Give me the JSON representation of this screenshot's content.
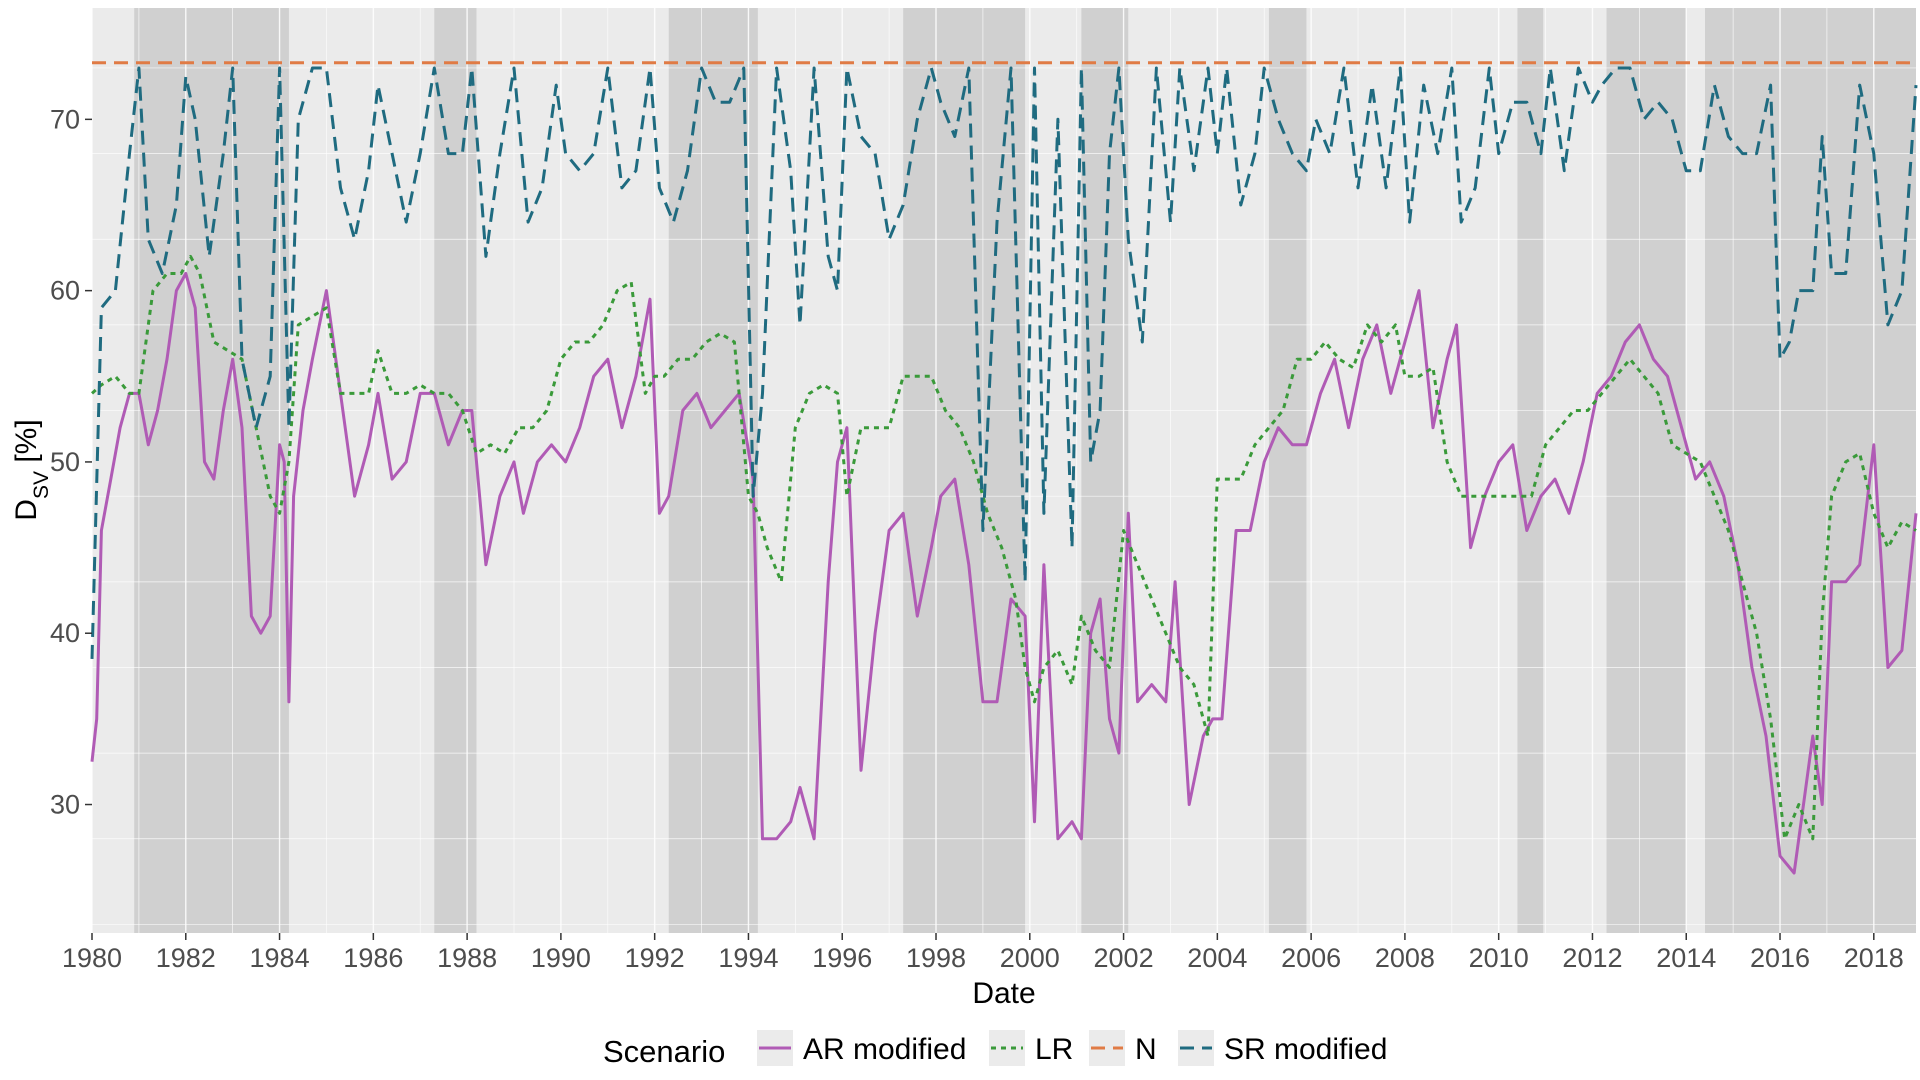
{
  "chart_data": {
    "type": "line",
    "xlabel": "Date",
    "ylabel": "D",
    "ylabel_sub": "SV",
    "ylabel_unit": " [%]",
    "xlim": [
      1980.0,
      2018.9
    ],
    "ylim": [
      22.5,
      76.5
    ],
    "x_ticks": [
      1980,
      1982,
      1984,
      1986,
      1988,
      1990,
      1992,
      1994,
      1996,
      1998,
      2000,
      2002,
      2004,
      2006,
      2008,
      2010,
      2012,
      2014,
      2016,
      2018
    ],
    "y_ticks": [
      30,
      40,
      50,
      60,
      70
    ],
    "grid": true,
    "background": "#ebebeb",
    "shaded_periods": [
      [
        1980.9,
        1984.2
      ],
      [
        1987.3,
        1988.2
      ],
      [
        1992.3,
        1994.2
      ],
      [
        1997.3,
        1999.9
      ],
      [
        2001.1,
        2002.1
      ],
      [
        2005.1,
        2005.9
      ],
      [
        2010.4,
        2010.95
      ],
      [
        2012.3,
        2014.0
      ],
      [
        2014.4,
        2018.9
      ]
    ],
    "legend": {
      "title": "Scenario",
      "position": "bottom"
    },
    "series": [
      {
        "name": "AR modified",
        "color": "#b05bb5",
        "dash": "solid",
        "x": [
          1980.0,
          1980.1,
          1980.2,
          1980.4,
          1980.6,
          1980.8,
          1981.0,
          1981.2,
          1981.4,
          1981.6,
          1981.8,
          1982.0,
          1982.2,
          1982.4,
          1982.6,
          1982.8,
          1983.0,
          1983.2,
          1983.4,
          1983.6,
          1983.8,
          1984.0,
          1984.1,
          1984.2,
          1984.3,
          1984.5,
          1984.7,
          1985.0,
          1985.3,
          1985.6,
          1985.9,
          1986.1,
          1986.4,
          1986.7,
          1987.0,
          1987.3,
          1987.6,
          1987.9,
          1988.1,
          1988.4,
          1988.7,
          1989.0,
          1989.2,
          1989.5,
          1989.8,
          1990.1,
          1990.4,
          1990.7,
          1991.0,
          1991.3,
          1991.6,
          1991.9,
          1992.1,
          1992.3,
          1992.6,
          1992.9,
          1993.2,
          1993.5,
          1993.8,
          1994.1,
          1994.3,
          1994.6,
          1994.9,
          1995.1,
          1995.4,
          1995.7,
          1995.9,
          1996.1,
          1996.4,
          1996.7,
          1997.0,
          1997.3,
          1997.6,
          1997.9,
          1998.1,
          1998.4,
          1998.7,
          1999.0,
          1999.3,
          1999.6,
          1999.9,
          2000.1,
          2000.3,
          2000.6,
          2000.9,
          2001.1,
          2001.3,
          2001.5,
          2001.7,
          2001.9,
          2002.1,
          2002.3,
          2002.6,
          2002.9,
          2003.1,
          2003.4,
          2003.7,
          2003.9,
          2004.1,
          2004.4,
          2004.7,
          2005.0,
          2005.3,
          2005.6,
          2005.9,
          2006.2,
          2006.5,
          2006.8,
          2007.1,
          2007.4,
          2007.7,
          2008.0,
          2008.3,
          2008.6,
          2008.9,
          2009.1,
          2009.4,
          2009.7,
          2010.0,
          2010.3,
          2010.6,
          2010.9,
          2011.2,
          2011.5,
          2011.8,
          2012.1,
          2012.4,
          2012.7,
          2013.0,
          2013.3,
          2013.6,
          2013.9,
          2014.2,
          2014.5,
          2014.8,
          2015.1,
          2015.4,
          2015.7,
          2016.0,
          2016.3,
          2016.5,
          2016.7,
          2016.9,
          2017.1,
          2017.4,
          2017.7,
          2018.0,
          2018.3,
          2018.6,
          2018.9
        ],
        "y": [
          32.5,
          35,
          46,
          49,
          52,
          54,
          54,
          51,
          53,
          56,
          60,
          61,
          59,
          50,
          49,
          53,
          56,
          52,
          41,
          40,
          41,
          51,
          50,
          36,
          48,
          53,
          56,
          60,
          54,
          48,
          51,
          54,
          49,
          50,
          54,
          54,
          51,
          53,
          53,
          44,
          48,
          50,
          47,
          50,
          51,
          50,
          52,
          55,
          56,
          52,
          55,
          59.5,
          47,
          48,
          53,
          54,
          52,
          53,
          54,
          49,
          28,
          28,
          29,
          31,
          28,
          43,
          50,
          52,
          32,
          40,
          46,
          47,
          41,
          45,
          48,
          49,
          44,
          36,
          36,
          42,
          41,
          29,
          44,
          28,
          29,
          28,
          40,
          42,
          35,
          33,
          47,
          36,
          37,
          36,
          43,
          30,
          34,
          35,
          35,
          46,
          46,
          50,
          52,
          51,
          51,
          54,
          56,
          52,
          56,
          58,
          54,
          57,
          60,
          52,
          56,
          58,
          45,
          48,
          50,
          51,
          46,
          48,
          49,
          47,
          50,
          54,
          55,
          57,
          58,
          56,
          55,
          52,
          49,
          50,
          48,
          44,
          38,
          34,
          27,
          26,
          30,
          34,
          30,
          43,
          43,
          44,
          51,
          38,
          39,
          47
        ]
      },
      {
        "name": "LR",
        "color": "#3a9a3a",
        "dash": "dotted",
        "x": [
          1980.0,
          1980.2,
          1980.5,
          1980.8,
          1981.0,
          1981.3,
          1981.6,
          1981.9,
          1982.1,
          1982.3,
          1982.6,
          1982.9,
          1983.2,
          1983.5,
          1983.8,
          1984.0,
          1984.2,
          1984.4,
          1984.7,
          1985.0,
          1985.3,
          1985.6,
          1985.9,
          1986.1,
          1986.4,
          1986.7,
          1987.0,
          1987.3,
          1987.6,
          1987.9,
          1988.2,
          1988.5,
          1988.8,
          1989.1,
          1989.4,
          1989.7,
          1990.0,
          1990.3,
          1990.6,
          1990.9,
          1991.2,
          1991.5,
          1991.8,
          1992.0,
          1992.2,
          1992.5,
          1992.8,
          1993.1,
          1993.4,
          1993.7,
          1994.0,
          1994.2,
          1994.4,
          1994.7,
          1995.0,
          1995.3,
          1995.6,
          1995.9,
          1996.1,
          1996.4,
          1996.7,
          1997.0,
          1997.3,
          1997.6,
          1997.9,
          1998.2,
          1998.5,
          1998.8,
          1999.1,
          1999.4,
          1999.7,
          1999.9,
          2000.1,
          2000.3,
          2000.6,
          2000.9,
          2001.1,
          2001.4,
          2001.7,
          2002.0,
          2002.3,
          2002.6,
          2002.9,
          2003.2,
          2003.5,
          2003.8,
          2004.0,
          2004.2,
          2004.5,
          2004.8,
          2005.1,
          2005.4,
          2005.7,
          2006.0,
          2006.3,
          2006.6,
          2006.9,
          2007.2,
          2007.5,
          2007.8,
          2008.0,
          2008.3,
          2008.6,
          2008.9,
          2009.2,
          2009.5,
          2009.8,
          2010.1,
          2010.4,
          2010.7,
          2011.0,
          2011.3,
          2011.6,
          2011.9,
          2012.2,
          2012.5,
          2012.8,
          2013.1,
          2013.4,
          2013.7,
          2014.0,
          2014.3,
          2014.6,
          2014.9,
          2015.2,
          2015.5,
          2015.8,
          2016.1,
          2016.4,
          2016.7,
          2016.9,
          2017.1,
          2017.4,
          2017.7,
          2018.0,
          2018.3,
          2018.6,
          2018.9
        ],
        "y": [
          54,
          54.5,
          55,
          54,
          54,
          60,
          61,
          61,
          62,
          61,
          57,
          56.5,
          56,
          52,
          48,
          47,
          50,
          58,
          58.5,
          59,
          54,
          54,
          54,
          56.5,
          54,
          54,
          54.5,
          54,
          54,
          53,
          50.5,
          51,
          50.5,
          52,
          52,
          53,
          56,
          57,
          57,
          58,
          60,
          60.5,
          54,
          55,
          55,
          56,
          56,
          57,
          57.5,
          57,
          48,
          47,
          45,
          43,
          52,
          54,
          54.5,
          54,
          48,
          52,
          52,
          52,
          55,
          55,
          55,
          53,
          52,
          50,
          47,
          45,
          42,
          38,
          36,
          38,
          39,
          37,
          41,
          39,
          38,
          46,
          44,
          42,
          40,
          38,
          37,
          34,
          49,
          49,
          49,
          51,
          52,
          53,
          56,
          56,
          57,
          56,
          55.5,
          58,
          57,
          58,
          55,
          55,
          55.5,
          50,
          48,
          48,
          48,
          48,
          48,
          48,
          51,
          52,
          53,
          53,
          54,
          55,
          56,
          55,
          54,
          51,
          50.5,
          50,
          48,
          46,
          43,
          40,
          35,
          28,
          30,
          28,
          41,
          48,
          50,
          50.5,
          47,
          45,
          46.5,
          46
        ]
      },
      {
        "name": "N",
        "color": "#e07b45",
        "dash": "dashed",
        "x": [
          1980.0,
          2018.9
        ],
        "y": [
          73.3,
          73.3
        ]
      },
      {
        "name": "SR modified",
        "color": "#1f6b80",
        "dash": "dashed",
        "x": [
          1980.0,
          1980.2,
          1980.5,
          1980.8,
          1981.0,
          1981.2,
          1981.5,
          1981.8,
          1982.0,
          1982.2,
          1982.5,
          1982.8,
          1983.0,
          1983.2,
          1983.5,
          1983.8,
          1984.0,
          1984.2,
          1984.4,
          1984.7,
          1985.0,
          1985.3,
          1985.6,
          1985.9,
          1986.1,
          1986.4,
          1986.7,
          1987.0,
          1987.3,
          1987.6,
          1987.9,
          1988.1,
          1988.4,
          1988.7,
          1989.0,
          1989.3,
          1989.6,
          1989.9,
          1990.1,
          1990.4,
          1990.7,
          1991.0,
          1991.3,
          1991.6,
          1991.9,
          1992.1,
          1992.4,
          1992.7,
          1993.0,
          1993.3,
          1993.6,
          1993.9,
          1994.1,
          1994.3,
          1994.6,
          1994.9,
          1995.1,
          1995.4,
          1995.7,
          1995.9,
          1996.1,
          1996.4,
          1996.7,
          1997.0,
          1997.3,
          1997.6,
          1997.9,
          1998.1,
          1998.4,
          1998.7,
          1999.0,
          1999.3,
          1999.6,
          1999.9,
          2000.1,
          2000.3,
          2000.6,
          2000.9,
          2001.1,
          2001.3,
          2001.5,
          2001.7,
          2001.9,
          2002.1,
          2002.4,
          2002.7,
          2003.0,
          2003.2,
          2003.5,
          2003.8,
          2004.0,
          2004.2,
          2004.5,
          2004.8,
          2005.0,
          2005.3,
          2005.6,
          2005.9,
          2006.1,
          2006.4,
          2006.7,
          2007.0,
          2007.3,
          2007.6,
          2007.9,
          2008.1,
          2008.4,
          2008.7,
          2009.0,
          2009.2,
          2009.5,
          2009.8,
          2010.0,
          2010.3,
          2010.6,
          2010.9,
          2011.1,
          2011.4,
          2011.7,
          2012.0,
          2012.2,
          2012.5,
          2012.8,
          2013.1,
          2013.4,
          2013.7,
          2014.0,
          2014.3,
          2014.6,
          2014.9,
          2015.2,
          2015.5,
          2015.8,
          2016.0,
          2016.2,
          2016.4,
          2016.7,
          2016.9,
          2017.1,
          2017.4,
          2017.7,
          2018.0,
          2018.3,
          2018.6,
          2018.9
        ],
        "y": [
          38.5,
          59,
          60,
          68,
          73,
          63,
          61,
          65,
          72.5,
          70,
          62,
          68,
          73,
          56,
          52,
          55,
          73,
          52,
          70,
          73,
          73,
          66,
          63,
          67,
          72,
          68,
          64,
          68,
          73,
          68,
          68,
          73,
          62,
          68,
          73,
          64,
          66,
          72,
          68,
          67,
          68,
          73,
          66,
          67,
          73,
          66,
          64,
          67,
          73,
          71,
          71,
          73,
          48,
          54,
          73,
          67,
          58,
          73,
          62,
          60,
          73,
          69,
          68,
          63,
          65,
          70,
          73,
          71,
          69,
          73,
          46,
          64,
          73,
          43,
          73,
          47,
          70,
          45,
          73,
          50,
          53,
          68,
          73,
          63,
          57,
          73,
          64,
          73,
          67,
          73,
          68,
          73,
          65,
          68,
          73,
          70,
          68,
          67,
          70,
          68,
          73,
          66,
          72,
          66,
          73,
          64,
          72,
          68,
          73,
          64,
          66,
          73,
          68,
          71,
          71,
          68,
          73,
          67,
          73,
          71,
          72,
          73,
          73,
          70,
          71,
          70,
          67,
          67,
          72,
          69,
          68,
          68,
          72,
          56,
          57,
          60,
          60,
          69,
          61,
          61,
          72,
          68,
          58,
          60,
          72
        ]
      }
    ]
  }
}
